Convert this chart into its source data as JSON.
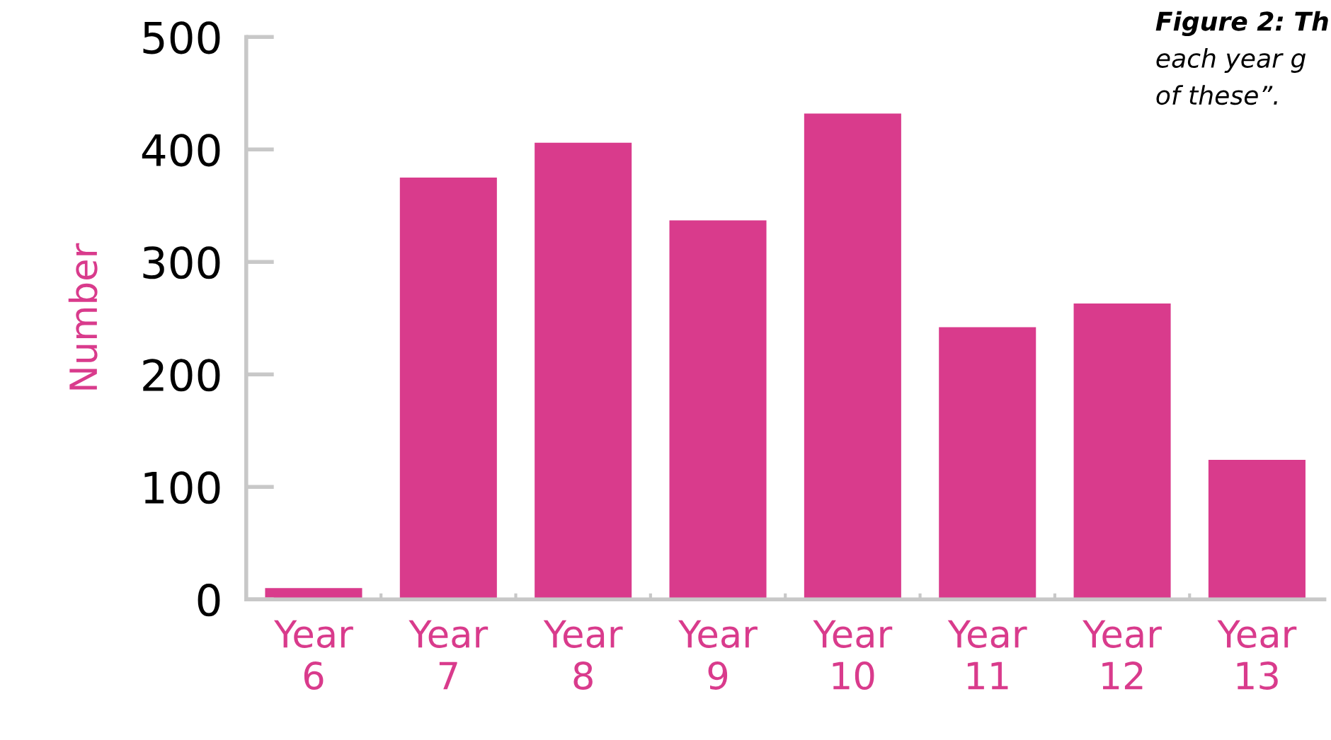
{
  "chart_data": {
    "type": "bar",
    "ylabel": "Number",
    "categories": [
      "Year\n6",
      "Year\n7",
      "Year\n8",
      "Year\n9",
      "Year\n10",
      "Year\n11",
      "Year\n12",
      "Year\n13"
    ],
    "values": [
      10,
      375,
      406,
      337,
      432,
      242,
      263,
      124
    ],
    "color": "#d93b8c",
    "ylim": [
      0,
      500
    ],
    "yticks": [
      0,
      100,
      200,
      300,
      400,
      500
    ],
    "grid": false,
    "legend": false,
    "annotations": [
      "Figure 2: Th",
      "each year g",
      "of these”."
    ]
  }
}
